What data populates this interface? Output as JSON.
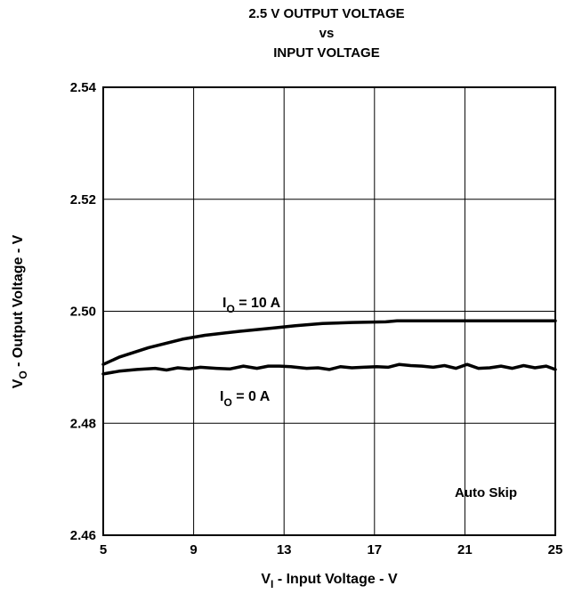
{
  "chart_data": {
    "type": "line",
    "title_lines": [
      "2.5 V OUTPUT VOLTAGE",
      "vs",
      "INPUT VOLTAGE"
    ],
    "xlabel": {
      "main": "V",
      "sub": "I",
      "rest": " - Input Voltage - V"
    },
    "ylabel": {
      "main": "V",
      "sub": "O",
      "rest": " - Output Voltage - V"
    },
    "xlim": [
      5,
      25
    ],
    "ylim": [
      2.46,
      2.54
    ],
    "x_ticks": [
      "5",
      "9",
      "13",
      "17",
      "21",
      "25"
    ],
    "y_ticks": [
      "2.46",
      "2.48",
      "2.50",
      "2.52",
      "2.54"
    ],
    "grid": true,
    "series": [
      {
        "name": "IO = 10 A",
        "label": {
          "main": "I",
          "sub": "O",
          "rest": " = 10 A"
        },
        "x": [
          5,
          5.7,
          7,
          8.5,
          9.5,
          11,
          12.5,
          13.5,
          14.7,
          16,
          17.5,
          18,
          20,
          22,
          25
        ],
        "y": [
          2.4905,
          2.4918,
          2.4935,
          2.495,
          2.4957,
          2.4964,
          2.497,
          2.4974,
          2.4978,
          2.498,
          2.4981,
          2.4983,
          2.4983,
          2.4983,
          2.4983
        ]
      },
      {
        "name": "IO = 0 A",
        "label": {
          "main": "I",
          "sub": "O",
          "rest": " = 0 A"
        },
        "x": [
          5,
          5.7,
          6.5,
          7.3,
          7.8,
          8.3,
          8.8,
          9.3,
          10,
          10.6,
          11.2,
          11.8,
          12.3,
          12.8,
          13.3,
          14,
          14.5,
          15,
          15.5,
          16,
          16.5,
          17.1,
          17.6,
          18.1,
          18.6,
          19.1,
          19.6,
          20.1,
          20.6,
          21.1,
          21.6,
          22.1,
          22.6,
          23.1,
          23.6,
          24.1,
          24.6,
          25
        ],
        "y": [
          2.4888,
          2.4893,
          2.4896,
          2.4898,
          2.4895,
          2.4899,
          2.4897,
          2.49,
          2.4898,
          2.4897,
          2.4902,
          2.4898,
          2.4902,
          2.4902,
          2.4901,
          2.4898,
          2.4899,
          2.4896,
          2.4901,
          2.4899,
          2.49,
          2.4901,
          2.49,
          2.4905,
          2.4903,
          2.4902,
          2.49,
          2.4903,
          2.4898,
          2.4905,
          2.4898,
          2.4899,
          2.4902,
          2.4898,
          2.4903,
          2.4899,
          2.4902,
          2.4896
        ]
      }
    ],
    "annotations": [
      {
        "text": "Auto Skip",
        "position": "bottom-right"
      }
    ]
  }
}
